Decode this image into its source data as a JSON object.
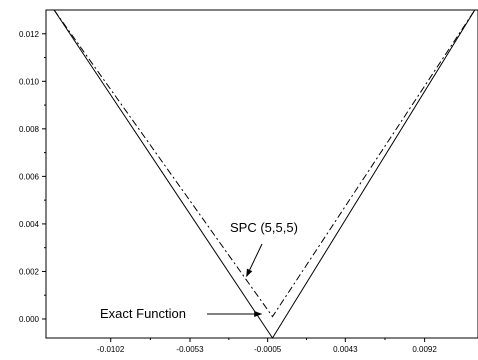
{
  "chart_data": {
    "type": "line",
    "title": "",
    "xlabel": "",
    "ylabel": "",
    "xlim": [
      -0.0142,
      0.0125
    ],
    "ylim": [
      -0.0008,
      0.013
    ],
    "x_ticks": [
      -0.0102,
      -0.0053,
      -0.0005,
      0.0043,
      0.0092
    ],
    "x_tick_labels": [
      "-0.0102",
      "-0.0053",
      "-0.0005",
      "0.0043",
      "0.0092"
    ],
    "y_ticks": [
      0.0,
      0.002,
      0.004,
      0.006,
      0.008,
      0.01,
      0.012
    ],
    "y_tick_labels": [
      "0.000",
      "0.002",
      "0.004",
      "0.006",
      "0.008",
      "0.010",
      "0.012"
    ],
    "grid": false,
    "legend": "none",
    "series": [
      {
        "name": "Exact Function",
        "style": "solid",
        "color": "#000000",
        "x": [
          -0.0137,
          -0.0002,
          0.0123
        ],
        "y": [
          0.013,
          -0.0008,
          0.013
        ]
      },
      {
        "name": "SPC (5,5,5)",
        "style": "dashdot",
        "color": "#000000",
        "x": [
          -0.0137,
          -0.0002,
          0.0123
        ],
        "y": [
          0.013,
          0.0001,
          0.013
        ]
      }
    ],
    "annotations": [
      {
        "text": "SPC (5,5,5)",
        "target_series": 1,
        "x": -0.0018,
        "y": 0.0018
      },
      {
        "text": "Exact Function",
        "target_series": 0,
        "x": -0.0009,
        "y": 0.0
      }
    ]
  }
}
